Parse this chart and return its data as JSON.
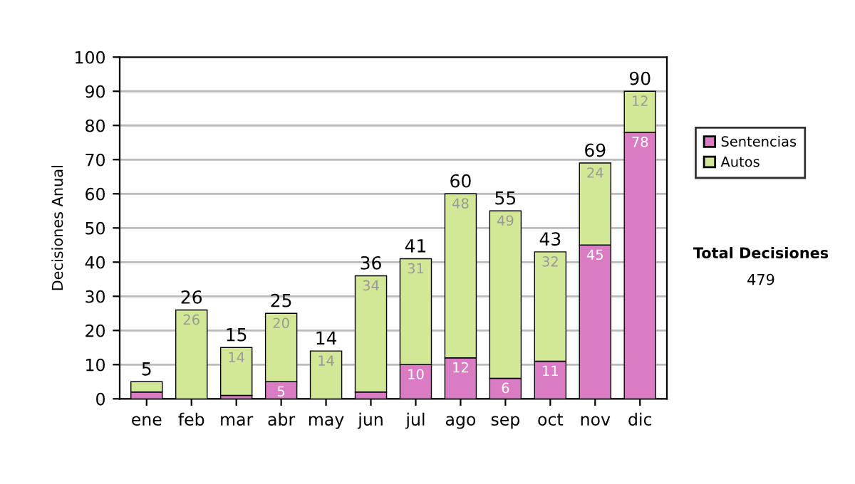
{
  "chart_data": {
    "type": "bar",
    "stacked": true,
    "ylabel": "Decisiones Anual",
    "categories": [
      "ene",
      "feb",
      "mar",
      "abr",
      "may",
      "jun",
      "jul",
      "ago",
      "sep",
      "oct",
      "nov",
      "dic"
    ],
    "series": [
      {
        "name": "Sentencias",
        "color": "#d97cc3",
        "values": [
          2,
          0,
          1,
          5,
          0,
          2,
          10,
          12,
          6,
          11,
          45,
          78
        ],
        "value_labels": [
          null,
          null,
          null,
          "5",
          null,
          null,
          "10",
          "12",
          "6",
          "11",
          "45",
          "78"
        ]
      },
      {
        "name": "Autos",
        "color": "#d3e897",
        "values": [
          3,
          26,
          14,
          20,
          14,
          34,
          31,
          48,
          49,
          32,
          24,
          12
        ],
        "value_labels": [
          null,
          "26",
          "14",
          "20",
          "14",
          "34",
          "31",
          "48",
          "49",
          "32",
          "24",
          "12"
        ]
      }
    ],
    "totals": [
      "5",
      "26",
      "15",
      "25",
      "14",
      "36",
      "41",
      "60",
      "55",
      "43",
      "69",
      "90"
    ],
    "ylim": [
      0,
      100
    ],
    "yticks": [
      0,
      10,
      20,
      30,
      40,
      50,
      60,
      70,
      80,
      90,
      100
    ],
    "grid": "y",
    "legend": "right",
    "annotations": [
      "Total Decisiones",
      "479"
    ]
  }
}
